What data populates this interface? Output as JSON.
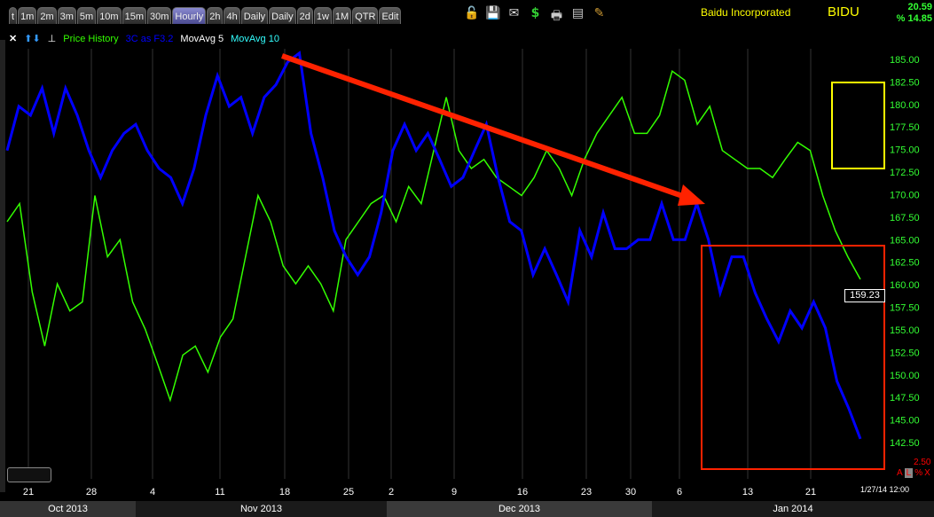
{
  "toolbar": {
    "tabs": [
      "t",
      "1m",
      "2m",
      "3m",
      "5m",
      "10m",
      "15m",
      "30m",
      "Hourly",
      "2h",
      "4h",
      "Daily",
      "Daily",
      "2d",
      "1w",
      "1M",
      "QTR",
      "Edit"
    ],
    "active_tab": "Hourly",
    "icons": [
      "unlock-icon",
      "save-icon",
      "email-icon",
      "dollar-icon",
      "print-icon",
      "window-icon",
      "pencil-icon"
    ]
  },
  "header": {
    "company": "Baidu Incorporated",
    "ticker": "BIDU",
    "change": "20.59",
    "pct_change": "% 14.85"
  },
  "legend": {
    "items": [
      {
        "label": "Price History",
        "color": "#33ff00"
      },
      {
        "label": "3C as F3.2",
        "color": "#0000ff"
      },
      {
        "label": "MovAvg 5",
        "color": "#ffffff"
      },
      {
        "label": "MovAvg 10",
        "color": "#33ffff"
      }
    ]
  },
  "status": {
    "last_price": "159.23",
    "scale_value": "2.50",
    "scale_buttons": [
      "A",
      "L",
      "%",
      "X"
    ],
    "cursor_time": "1/27/14 12:00"
  },
  "months": [
    "Oct 2013",
    "Nov 2013",
    "Dec 2013",
    "Jan 2014"
  ],
  "chart_data": {
    "type": "line",
    "x_ticks": [
      "21",
      "28",
      "4",
      "11",
      "18",
      "25",
      "2",
      "9",
      "16",
      "23",
      "30",
      "6",
      "13",
      "21"
    ],
    "y_ticks": [
      "185.00",
      "182.50",
      "180.00",
      "177.50",
      "175.00",
      "172.50",
      "170.00",
      "167.50",
      "165.00",
      "162.50",
      "160.00",
      "157.50",
      "155.00",
      "152.50",
      "150.00",
      "147.50",
      "145.00",
      "142.50"
    ],
    "ylim": [
      142.5,
      185
    ],
    "x_range": [
      "2013-10-17",
      "2014-01-27"
    ],
    "series": [
      {
        "name": "Price History",
        "color": "#33ff00",
        "values": [
          167.0,
          169.0,
          159.2,
          153.2,
          160.1,
          157.1,
          158.1,
          169.9,
          163.1,
          165.0,
          158.1,
          155.1,
          151.2,
          147.2,
          152.2,
          153.2,
          150.3,
          154.2,
          156.2,
          163.1,
          169.9,
          167.0,
          162.1,
          160.1,
          162.1,
          160.1,
          157.1,
          165.0,
          167.0,
          169.0,
          169.9,
          167.0,
          170.9,
          169.0,
          174.9,
          180.8,
          174.9,
          172.9,
          173.9,
          171.9,
          170.9,
          169.9,
          171.9,
          174.9,
          172.9,
          169.9,
          173.9,
          176.8,
          178.8,
          180.8,
          176.8,
          176.8,
          178.8,
          183.7,
          182.7,
          177.8,
          179.8,
          174.9,
          173.9,
          172.9,
          172.9,
          171.9,
          173.9,
          175.8,
          174.9,
          169.9,
          166.0,
          163.1,
          160.6
        ]
      },
      {
        "name": "3C as F3.2",
        "color": "#0000ff",
        "values": [
          174.9,
          179.8,
          178.8,
          181.8,
          176.8,
          181.8,
          178.8,
          174.9,
          171.9,
          174.9,
          176.8,
          177.8,
          174.9,
          172.9,
          171.9,
          169.0,
          172.9,
          178.8,
          183.2,
          179.8,
          180.8,
          176.8,
          180.8,
          182.2,
          184.7,
          185.7,
          176.8,
          171.9,
          166.0,
          163.1,
          161.1,
          163.1,
          168.0,
          174.9,
          177.8,
          174.9,
          176.8,
          173.9,
          170.9,
          171.9,
          174.9,
          177.8,
          171.9,
          167.0,
          166.0,
          161.1,
          164.0,
          161.1,
          158.1,
          166.0,
          163.1,
          168.0,
          164.0,
          164.0,
          165.0,
          165.0,
          169.0,
          165.0,
          165.0,
          169.0,
          165.0,
          159.1,
          163.1,
          163.1,
          159.1,
          156.2,
          153.7,
          157.1,
          155.2,
          158.1,
          155.2,
          149.3,
          146.3,
          142.9
        ]
      }
    ],
    "annotations": {
      "arrow_color": "#ff2200",
      "box_colors": [
        "#ffff00",
        "#ff2200"
      ]
    }
  }
}
